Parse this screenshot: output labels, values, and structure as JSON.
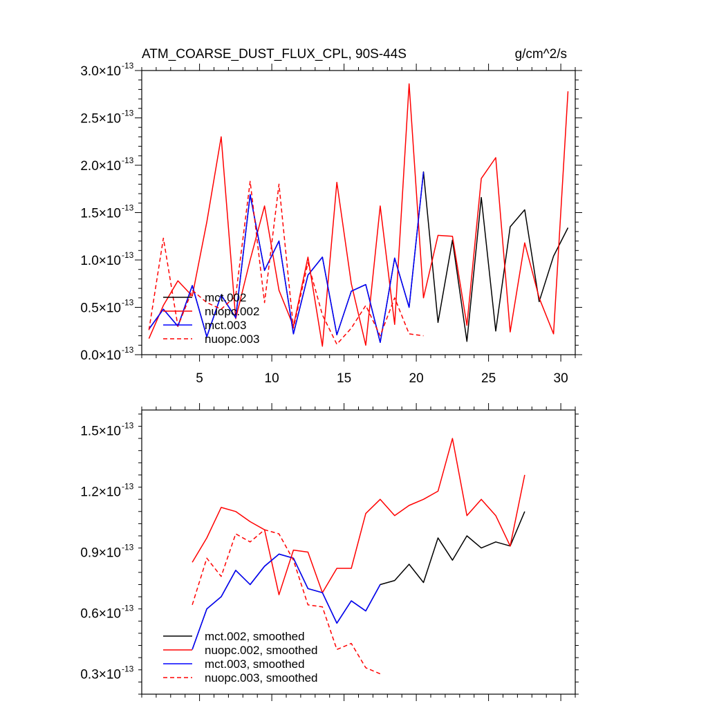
{
  "chart_data": [
    {
      "type": "line",
      "title": "ATM_COARSE_DUST_FLUX_CPL, 90S-44S",
      "units": "g/cm^2/s",
      "xlim": [
        1,
        31
      ],
      "ylim": [
        0,
        3e-13
      ],
      "x_ticks": [
        5,
        10,
        15,
        20,
        25,
        30
      ],
      "x_tick_labels": [
        "5",
        "10",
        "15",
        "20",
        "25",
        "30"
      ],
      "y_ticks": [
        0,
        5e-14,
        1e-13,
        1.5e-13,
        2e-13,
        2.5e-13,
        3e-13
      ],
      "y_tick_labels": [
        {
          "mantissa": "0.0×10",
          "exp": "-13"
        },
        {
          "mantissa": "0.5×10",
          "exp": "-13"
        },
        {
          "mantissa": "1.0×10",
          "exp": "-13"
        },
        {
          "mantissa": "1.5×10",
          "exp": "-13"
        },
        {
          "mantissa": "2.0×10",
          "exp": "-13"
        },
        {
          "mantissa": "2.5×10",
          "exp": "-13"
        },
        {
          "mantissa": "3.0×10",
          "exp": "-13"
        }
      ],
      "legend_position": "bottom-left",
      "series": [
        {
          "name": "mct.002",
          "color": "#000000",
          "dash": "solid",
          "x": [
            1.5,
            2.5,
            3.5,
            4.5,
            5.5,
            6.5,
            7.5,
            8.5,
            9.5,
            10.5,
            11.5,
            12.5,
            13.5,
            14.5,
            15.5,
            16.5,
            17.5,
            18.5,
            19.5,
            20.5,
            21.5,
            22.5,
            23.5,
            24.5,
            25.5,
            26.5,
            27.5,
            28.5,
            29.5,
            30.5
          ],
          "y": [
            0.27,
            0.48,
            0.3,
            0.73,
            0.19,
            0.63,
            0.39,
            1.69,
            0.89,
            1.2,
            0.22,
            0.84,
            1.03,
            0.21,
            0.67,
            0.74,
            0.13,
            1.02,
            0.5,
            1.93,
            0.34,
            1.21,
            0.14,
            1.66,
            0.25,
            1.35,
            1.53,
            0.56,
            1.04,
            1.34
          ]
        },
        {
          "name": "nuopc.002",
          "color": "#ff0000",
          "dash": "solid",
          "x": [
            1.5,
            2.5,
            3.5,
            4.5,
            5.5,
            6.5,
            7.5,
            8.5,
            9.5,
            10.5,
            11.5,
            12.5,
            13.5,
            14.5,
            15.5,
            16.5,
            17.5,
            18.5,
            19.5,
            20.5,
            21.5,
            22.5,
            23.5,
            24.5,
            25.5,
            26.5,
            27.5,
            28.5,
            29.5,
            30.5
          ],
          "y": [
            0.17,
            0.52,
            0.78,
            0.62,
            1.4,
            2.3,
            0.38,
            1.0,
            1.57,
            0.68,
            0.3,
            1.03,
            0.09,
            1.82,
            0.75,
            0.1,
            1.57,
            0.32,
            2.86,
            0.6,
            1.26,
            1.25,
            0.31,
            1.86,
            2.08,
            0.24,
            1.18,
            0.6,
            0.22,
            2.78
          ]
        },
        {
          "name": "mct.003",
          "color": "#0000ff",
          "dash": "solid",
          "x": [
            1.5,
            2.5,
            3.5,
            4.5,
            5.5,
            6.5,
            7.5,
            8.5,
            9.5,
            10.5,
            11.5,
            12.5,
            13.5,
            14.5,
            15.5,
            16.5,
            17.5,
            18.5,
            19.5,
            20.5
          ],
          "y": [
            0.27,
            0.48,
            0.3,
            0.73,
            0.19,
            0.63,
            0.39,
            1.69,
            0.89,
            1.2,
            0.22,
            0.84,
            1.03,
            0.21,
            0.67,
            0.74,
            0.13,
            1.02,
            0.5,
            1.93
          ]
        },
        {
          "name": "nuopc.003",
          "color": "#ff0000",
          "dash": "dashed",
          "x": [
            1.5,
            2.5,
            3.5,
            4.5,
            5.5,
            6.5,
            7.5,
            8.5,
            9.5,
            10.5,
            11.5,
            12.5,
            13.5,
            14.5,
            15.5,
            16.5,
            17.5,
            18.5,
            19.5,
            20.5
          ],
          "y": [
            0.26,
            1.23,
            0.3,
            0.68,
            0.55,
            0.48,
            0.62,
            1.83,
            0.55,
            1.8,
            0.28,
            0.97,
            0.42,
            0.11,
            0.28,
            0.52,
            0.2,
            0.6,
            0.22,
            0.2
          ]
        }
      ]
    },
    {
      "type": "line",
      "title": "",
      "xlim": [
        1,
        31
      ],
      "ylim": [
        2e-14,
        1.6e-13
      ],
      "x_ticks": [
        5,
        10,
        15,
        20,
        25,
        30
      ],
      "x_tick_labels": [],
      "y_ticks": [
        3e-14,
        6e-14,
        9e-14,
        1.2e-13,
        1.5e-13
      ],
      "y_tick_labels": [
        {
          "mantissa": "0.3×10",
          "exp": "-13"
        },
        {
          "mantissa": "0.6×10",
          "exp": "-13"
        },
        {
          "mantissa": "0.9×10",
          "exp": "-13"
        },
        {
          "mantissa": "1.2×10",
          "exp": "-13"
        },
        {
          "mantissa": "1.5×10",
          "exp": "-13"
        }
      ],
      "legend_position": "bottom-left",
      "series": [
        {
          "name": "mct.002, smoothed",
          "color": "#000000",
          "dash": "solid",
          "x": [
            4.5,
            5.5,
            6.5,
            7.5,
            8.5,
            9.5,
            10.5,
            11.5,
            12.5,
            13.5,
            14.5,
            15.5,
            16.5,
            17.5,
            18.5,
            19.5,
            20.5,
            21.5,
            22.5,
            23.5,
            24.5,
            25.5,
            26.5,
            27.5
          ],
          "y": [
            0.42,
            0.62,
            0.68,
            0.81,
            0.74,
            0.83,
            0.89,
            0.87,
            0.72,
            0.7,
            0.55,
            0.66,
            0.61,
            0.74,
            0.76,
            0.84,
            0.75,
            0.97,
            0.86,
            0.98,
            0.92,
            0.95,
            0.93,
            1.1
          ]
        },
        {
          "name": "nuopc.002, smoothed",
          "color": "#ff0000",
          "dash": "solid",
          "x": [
            4.5,
            5.5,
            6.5,
            7.5,
            8.5,
            9.5,
            10.5,
            11.5,
            12.5,
            13.5,
            14.5,
            15.5,
            16.5,
            17.5,
            18.5,
            19.5,
            20.5,
            21.5,
            22.5,
            23.5,
            24.5,
            25.5,
            26.5,
            27.5
          ],
          "y": [
            0.85,
            0.97,
            1.12,
            1.1,
            1.05,
            1.01,
            0.69,
            0.91,
            0.9,
            0.7,
            0.82,
            0.82,
            1.09,
            1.16,
            1.08,
            1.13,
            1.16,
            1.2,
            1.46,
            1.08,
            1.16,
            1.08,
            0.93,
            1.28
          ]
        },
        {
          "name": "mct.003, smoothed",
          "color": "#0000ff",
          "dash": "solid",
          "x": [
            4.5,
            5.5,
            6.5,
            7.5,
            8.5,
            9.5,
            10.5,
            11.5,
            12.5,
            13.5,
            14.5,
            15.5,
            16.5,
            17.5
          ],
          "y": [
            0.42,
            0.62,
            0.68,
            0.81,
            0.74,
            0.83,
            0.89,
            0.87,
            0.72,
            0.7,
            0.55,
            0.66,
            0.61,
            0.74
          ]
        },
        {
          "name": "nuopc.003, smoothed",
          "color": "#ff0000",
          "dash": "dashed",
          "x": [
            4.5,
            5.5,
            6.5,
            7.5,
            8.5,
            9.5,
            10.5,
            11.5,
            12.5,
            13.5,
            14.5,
            15.5,
            16.5,
            17.5
          ],
          "y": [
            0.64,
            0.87,
            0.78,
            0.99,
            0.95,
            1.01,
            0.99,
            0.86,
            0.64,
            0.63,
            0.42,
            0.45,
            0.33,
            0.3
          ]
        }
      ]
    }
  ]
}
